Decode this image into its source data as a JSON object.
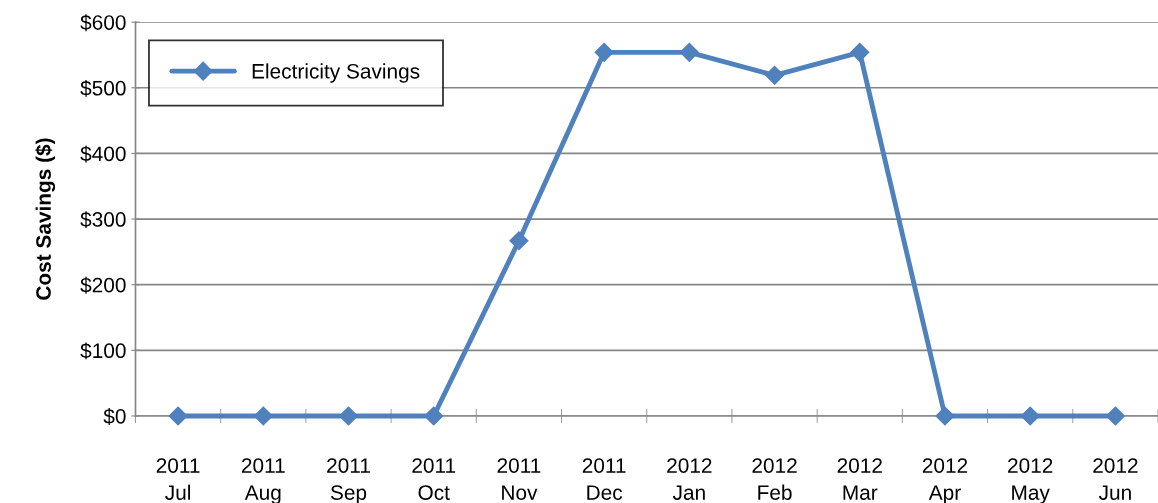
{
  "chart_data": {
    "type": "line",
    "ylabel": "Cost Savings ($)",
    "categories": [
      "2011\nJul",
      "2011\nAug",
      "2011\nSep",
      "2011\nOct",
      "2011\nNov",
      "2011\nDec",
      "2012\nJan",
      "2012\nFeb",
      "2012\nMar",
      "2012\nApr",
      "2012\nMay",
      "2012\nJun"
    ],
    "series": [
      {
        "name": "Electricity Savings",
        "color": "#4f81bd",
        "values": [
          0,
          0,
          0,
          0,
          267,
          554,
          554,
          519,
          554,
          0,
          0,
          0
        ]
      }
    ],
    "ylim": [
      0,
      600
    ],
    "yticks": [
      {
        "value": 0,
        "label": "$0"
      },
      {
        "value": 100,
        "label": "$100"
      },
      {
        "value": 200,
        "label": "$200"
      },
      {
        "value": 300,
        "label": "$300"
      },
      {
        "value": 400,
        "label": "$400"
      },
      {
        "value": 500,
        "label": "$500"
      },
      {
        "value": 600,
        "label": "$600"
      }
    ],
    "grid": "y",
    "legend": "top left",
    "marker": "diamond",
    "line_style": "solid"
  }
}
